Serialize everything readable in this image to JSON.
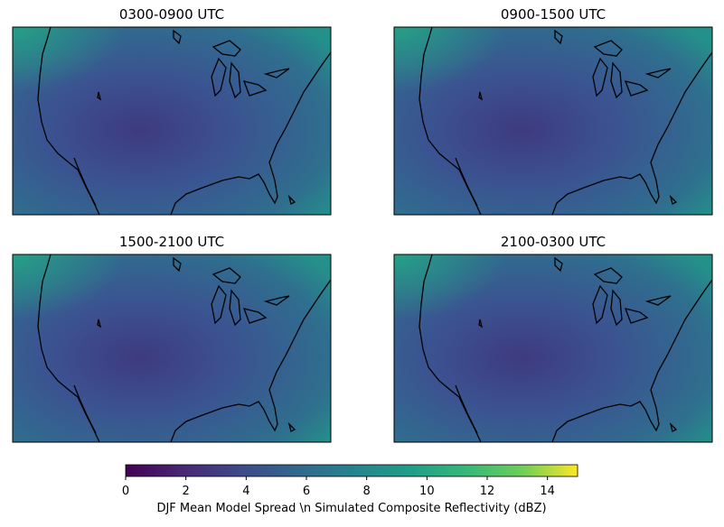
{
  "panels": [
    {
      "title": "0300-0900 UTC"
    },
    {
      "title": "0900-1500 UTC"
    },
    {
      "title": "1500-2100 UTC"
    },
    {
      "title": "2100-0300 UTC"
    }
  ],
  "colorbar": {
    "lim": [
      0,
      15
    ],
    "ticks": [
      0,
      2,
      4,
      6,
      8,
      10,
      12,
      14
    ],
    "label": "DJF Mean Model Spread \\n Simulated Composite Reflectivity (dBZ)"
  }
}
